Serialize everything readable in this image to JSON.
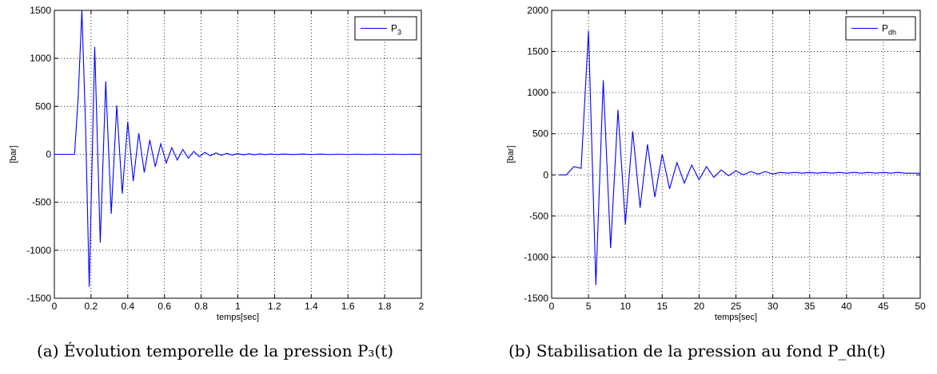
{
  "figures": [
    {
      "caption": "(a) Évolution temporelle de la pression P₃(t)",
      "chart_data": {
        "type": "line",
        "xlabel": "temps[sec]",
        "ylabel": "[bar]",
        "xlim": [
          0,
          2
        ],
        "ylim": [
          -1500,
          1500
        ],
        "xticks": [
          0,
          0.2,
          0.4,
          0.6,
          0.8,
          1,
          1.2,
          1.4,
          1.6,
          1.8,
          2
        ],
        "xtick_labels": [
          "0",
          "0.2",
          "0.4",
          "0.6",
          "0.8",
          "1",
          "1.2",
          "1.4",
          "1.6",
          "1.8",
          "2"
        ],
        "yticks": [
          -1500,
          -1000,
          -500,
          0,
          500,
          1000,
          1500
        ],
        "ytick_labels": [
          "-1500",
          "-1000",
          "-500",
          "0",
          "500",
          "1000",
          "1500"
        ],
        "grid": true,
        "legend_position": "top-right",
        "line_color": "#0000ff",
        "series": [
          {
            "name": "P3",
            "legend_main": "P",
            "legend_sub": "3",
            "x": [
              0,
              0.11,
              0.13,
              0.15,
              0.17,
              0.19,
              0.22,
              0.25,
              0.28,
              0.31,
              0.34,
              0.37,
              0.4,
              0.43,
              0.46,
              0.49,
              0.52,
              0.55,
              0.58,
              0.61,
              0.64,
              0.67,
              0.7,
              0.73,
              0.76,
              0.79,
              0.82,
              0.85,
              0.88,
              0.91,
              0.94,
              0.97,
              1.0,
              1.03,
              1.06,
              1.09,
              1.12,
              1.15,
              1.18,
              1.21,
              1.25,
              1.3,
              1.35,
              1.4,
              1.45,
              1.5,
              1.55,
              1.6,
              1.65,
              1.7,
              1.75,
              1.8,
              1.85,
              1.9,
              1.95,
              2.0
            ],
            "y": [
              0,
              0,
              600,
              1500,
              300,
              -1380,
              1120,
              -920,
              760,
              -620,
              510,
              -410,
              340,
              -280,
              220,
              -190,
              150,
              -130,
              110,
              -90,
              70,
              -60,
              50,
              -40,
              30,
              -25,
              20,
              -15,
              15,
              -10,
              10,
              -8,
              8,
              -6,
              6,
              -5,
              5,
              -4,
              4,
              -3,
              3,
              -3,
              3,
              -2,
              3,
              -2,
              2,
              -2,
              2,
              -2,
              2,
              -2,
              2,
              -2,
              1,
              0
            ]
          }
        ]
      }
    },
    {
      "caption": "(b) Stabilisation de la pression au fond P_dh(t)",
      "chart_data": {
        "type": "line",
        "xlabel": "temps[sec]",
        "ylabel": "[bar]",
        "xlim": [
          0,
          50
        ],
        "ylim": [
          -1500,
          2000
        ],
        "xticks": [
          0,
          5,
          10,
          15,
          20,
          25,
          30,
          35,
          40,
          45,
          50
        ],
        "xtick_labels": [
          "0",
          "5",
          "10",
          "15",
          "20",
          "25",
          "30",
          "35",
          "40",
          "45",
          "50"
        ],
        "yticks": [
          -1500,
          -1000,
          -500,
          0,
          500,
          1000,
          1500,
          2000
        ],
        "ytick_labels": [
          "-1500",
          "-1000",
          "-500",
          "0",
          "500",
          "1000",
          "1500",
          "2000"
        ],
        "grid": true,
        "legend_position": "top-right",
        "line_color": "#0000ff",
        "series": [
          {
            "name": "Pdh",
            "legend_main": "P",
            "legend_sub": "dh",
            "x": [
              1,
              2,
              3,
              4,
              5,
              6,
              7,
              8,
              9,
              10,
              11,
              12,
              13,
              14,
              15,
              16,
              17,
              18,
              19,
              20,
              21,
              22,
              23,
              24,
              25,
              26,
              27,
              28,
              29,
              30,
              31,
              32,
              33,
              34,
              35,
              36,
              37,
              38,
              39,
              40,
              41,
              42,
              43,
              44,
              45,
              46,
              47,
              48,
              49,
              50
            ],
            "y": [
              0,
              0,
              100,
              80,
              1750,
              -1340,
              1150,
              -890,
              790,
              -600,
              530,
              -400,
              370,
              -270,
              250,
              -170,
              150,
              -100,
              120,
              -60,
              100,
              -30,
              60,
              -10,
              50,
              0,
              40,
              10,
              40,
              10,
              30,
              20,
              30,
              20,
              30,
              20,
              30,
              20,
              30,
              20,
              30,
              20,
              30,
              20,
              30,
              20,
              30,
              20,
              20,
              20
            ]
          }
        ]
      }
    }
  ]
}
